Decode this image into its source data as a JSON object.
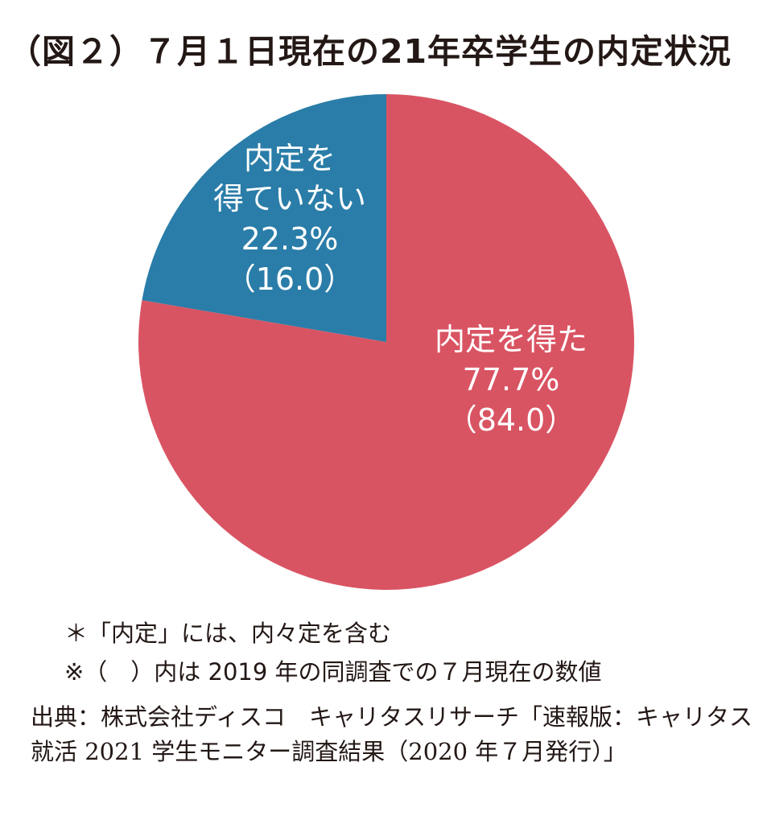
{
  "chart_data": {
    "type": "pie",
    "title": "（図２）７月１日現在の21年卒学生の内定状況",
    "slices": [
      {
        "lines": [
          "内定を得た",
          "77.7%",
          "（84.0）"
        ],
        "value": 77.7,
        "previous": 84.0,
        "color": "#d95463"
      },
      {
        "lines": [
          "内定を",
          "得ていない",
          "22.3%",
          "（16.0）"
        ],
        "value": 22.3,
        "previous": 16.0,
        "color": "#2a7da8"
      }
    ]
  },
  "notes": [
    "＊「内定」には、内々定を含む",
    "※（　）内は 2019 年の同調査での７月現在の数値"
  ],
  "source": "出典：株式会社ディスコ　キャリタスリサーチ「速報版：キャリタス就活 2021 学生モニター調査結果（2020 年７月発行）」"
}
